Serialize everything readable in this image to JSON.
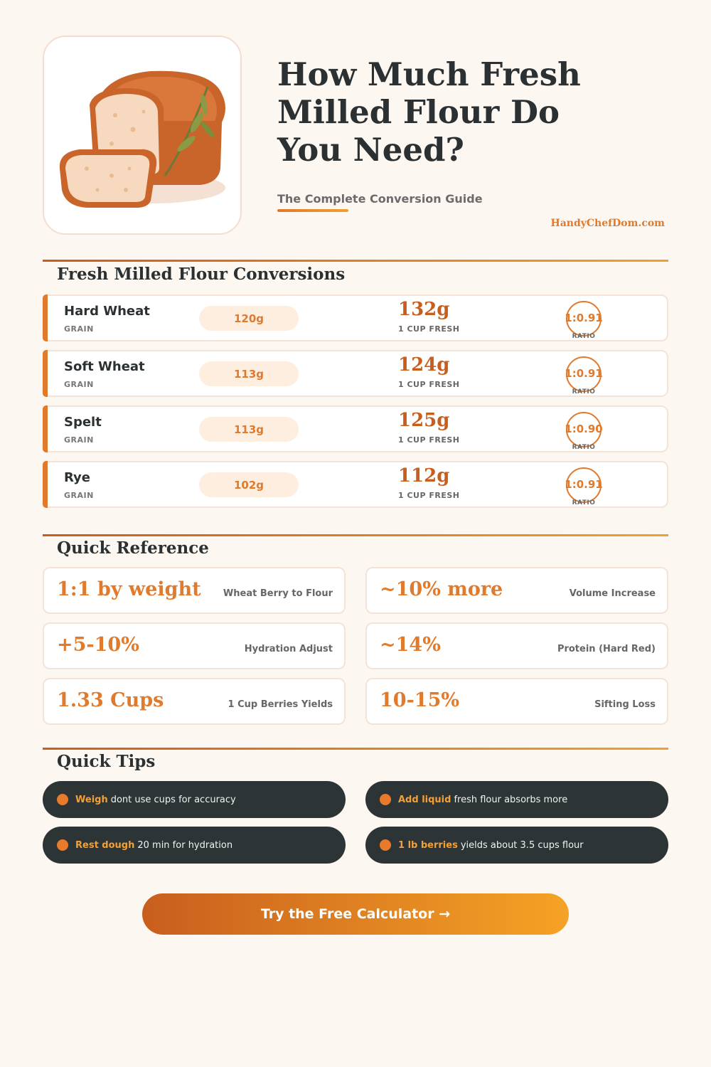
{
  "header": {
    "title": "How Much Fresh\nMilled Flour Do\nYou Need?",
    "subtitle": "The Complete Conversion Guide",
    "brand": "HandyChefDom.com",
    "hero_icon": "bread-loaf-icon"
  },
  "conversions": {
    "title": "Fresh Milled Flour Conversions",
    "rows": [
      {
        "name": "Hard Wheat",
        "type": "GRAIN",
        "berry": "120g",
        "fresh": "132g",
        "fresh_label": "1 CUP FRESH",
        "ratio": "1:0.91",
        "ratio_label": "RATIO"
      },
      {
        "name": "Soft Wheat",
        "type": "GRAIN",
        "berry": "113g",
        "fresh": "124g",
        "fresh_label": "1 CUP FRESH",
        "ratio": "1:0.91",
        "ratio_label": "RATIO"
      },
      {
        "name": "Spelt",
        "type": "GRAIN",
        "berry": "113g",
        "fresh": "125g",
        "fresh_label": "1 CUP FRESH",
        "ratio": "1:0.90",
        "ratio_label": "RATIO"
      },
      {
        "name": "Rye",
        "type": "GRAIN",
        "berry": "102g",
        "fresh": "112g",
        "fresh_label": "1 CUP FRESH",
        "ratio": "1:0.91",
        "ratio_label": "RATIO"
      }
    ]
  },
  "reference": {
    "title": "Quick Reference",
    "cards": [
      {
        "value": "1:1 by weight",
        "label": "Wheat Berry to Flour"
      },
      {
        "value": "~10% more",
        "label": "Volume Increase"
      },
      {
        "value": "+5-10%",
        "label": "Hydration Adjust"
      },
      {
        "value": "~14%",
        "label": "Protein (Hard Red)"
      },
      {
        "value": "1.33 Cups",
        "label": "1 Cup Berries Yields"
      },
      {
        "value": "10-15%",
        "label": "Sifting Loss"
      }
    ]
  },
  "tips": {
    "title": "Quick Tips",
    "items": [
      {
        "highlight": "Weigh",
        "text": "dont use cups for accuracy"
      },
      {
        "highlight": "Add liquid",
        "text": "fresh flour absorbs more"
      },
      {
        "highlight": "Rest dough",
        "text": "20 min for hydration"
      },
      {
        "highlight": "1 lb berries",
        "text": "yields about 3.5 cups flour"
      }
    ]
  },
  "cta": {
    "label": "Try the Free Calculator →"
  },
  "colors": {
    "accent": "#e07a2c",
    "dark": "#2d3436",
    "background": "#fdf7f1"
  }
}
